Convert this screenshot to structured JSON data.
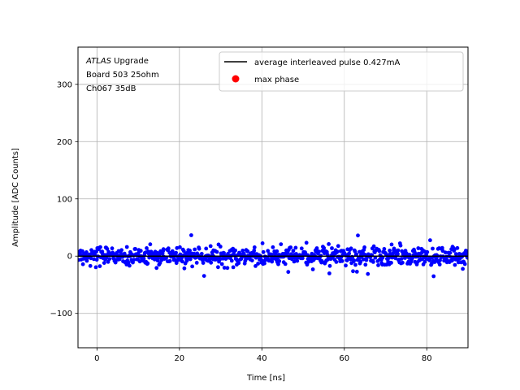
{
  "chart_data": {
    "type": "scatter",
    "xlabel": "Time [ns]",
    "ylabel": "Amplitude [ADC Counts]",
    "xlim": [
      -4.6,
      90
    ],
    "ylim": [
      -160,
      365
    ],
    "xticks": [
      0,
      20,
      40,
      60,
      80
    ],
    "yticks": [
      -100,
      0,
      100,
      200,
      300
    ],
    "grid": true,
    "legend_position": "top-right",
    "annotation": {
      "italic": "ATLAS",
      "rest": " Upgrade",
      "line2": " Board 503 25ohm",
      "line3": " Ch067 35dB"
    },
    "series": [
      {
        "name": "average interleaved pulse 0.427mA",
        "kind": "line",
        "color": "#000000",
        "x": [
          -4.6,
          90
        ],
        "y": [
          0,
          0
        ]
      },
      {
        "name": "max phase",
        "kind": "scatter",
        "color": "#ff0000",
        "x": [],
        "y": []
      },
      {
        "kind": "scatter",
        "color": "#0000ff",
        "x": [],
        "y": [],
        "noise": {
          "x_start": -4.6,
          "x_end": 90,
          "step": 0.12,
          "mean": 0,
          "sigma": 8,
          "min": -36,
          "max": 47
        }
      }
    ]
  }
}
